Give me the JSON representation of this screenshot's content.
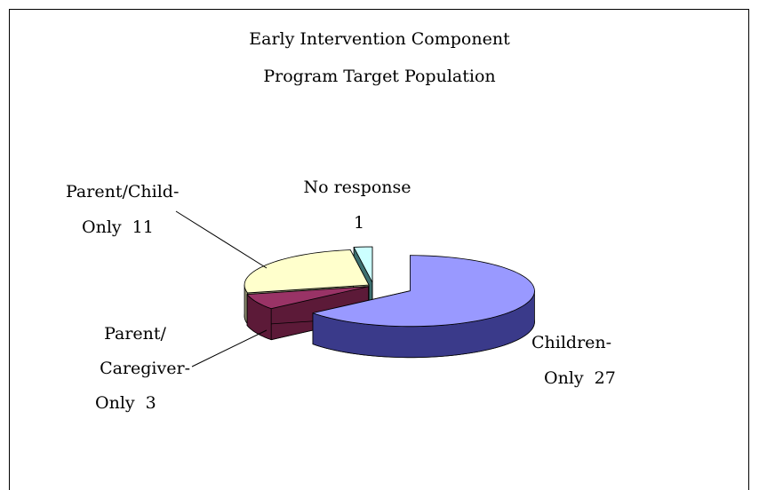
{
  "chart_data": {
    "type": "pie3d",
    "title": [
      "Early Intervention Component",
      "Program Target Population"
    ],
    "categories": [
      [
        "Children-",
        "Only"
      ],
      [
        "Parent/",
        "Caregiver-",
        "Only"
      ],
      [
        "Parent/Child-",
        "Only"
      ],
      [
        "No response"
      ]
    ],
    "values": [
      27,
      3,
      11,
      1
    ],
    "colors": [
      "#9999ff",
      "#993366",
      "#ffffcc",
      "#ccffff"
    ],
    "side_colors": [
      "#3a3a8a",
      "#5c1a38",
      "#8e8e70",
      "#3d7070"
    ]
  }
}
